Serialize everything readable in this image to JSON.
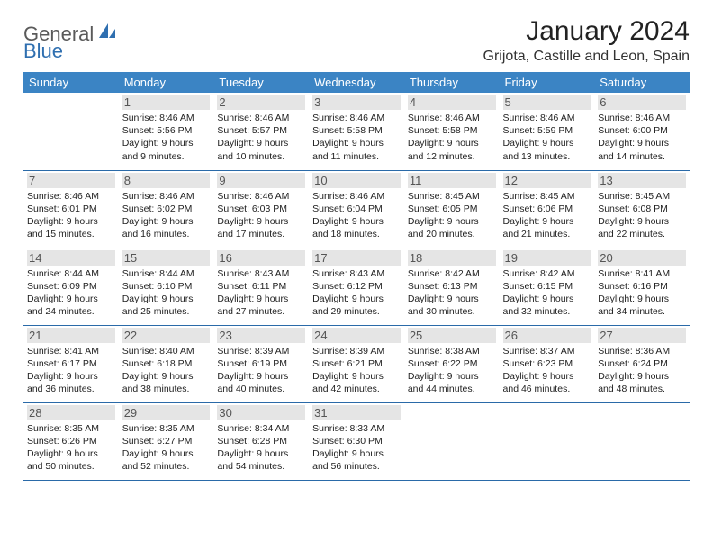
{
  "brand": {
    "part1": "General",
    "part2": "Blue"
  },
  "title": "January 2024",
  "location": "Grijota, Castille and Leon, Spain",
  "colors": {
    "header_bg": "#3b84c4",
    "header_text": "#ffffff",
    "row_border": "#2a6aa8",
    "daynum_bg": "#e5e5e5",
    "daynum_text": "#555555",
    "body_text": "#222222",
    "brand_gray": "#5a5a5a",
    "brand_blue": "#2f6fb0"
  },
  "days_of_week": [
    "Sunday",
    "Monday",
    "Tuesday",
    "Wednesday",
    "Thursday",
    "Friday",
    "Saturday"
  ],
  "weeks": [
    [
      null,
      {
        "n": "1",
        "sr": "8:46 AM",
        "ss": "5:56 PM",
        "dl": "9 hours and 9 minutes."
      },
      {
        "n": "2",
        "sr": "8:46 AM",
        "ss": "5:57 PM",
        "dl": "9 hours and 10 minutes."
      },
      {
        "n": "3",
        "sr": "8:46 AM",
        "ss": "5:58 PM",
        "dl": "9 hours and 11 minutes."
      },
      {
        "n": "4",
        "sr": "8:46 AM",
        "ss": "5:58 PM",
        "dl": "9 hours and 12 minutes."
      },
      {
        "n": "5",
        "sr": "8:46 AM",
        "ss": "5:59 PM",
        "dl": "9 hours and 13 minutes."
      },
      {
        "n": "6",
        "sr": "8:46 AM",
        "ss": "6:00 PM",
        "dl": "9 hours and 14 minutes."
      }
    ],
    [
      {
        "n": "7",
        "sr": "8:46 AM",
        "ss": "6:01 PM",
        "dl": "9 hours and 15 minutes."
      },
      {
        "n": "8",
        "sr": "8:46 AM",
        "ss": "6:02 PM",
        "dl": "9 hours and 16 minutes."
      },
      {
        "n": "9",
        "sr": "8:46 AM",
        "ss": "6:03 PM",
        "dl": "9 hours and 17 minutes."
      },
      {
        "n": "10",
        "sr": "8:46 AM",
        "ss": "6:04 PM",
        "dl": "9 hours and 18 minutes."
      },
      {
        "n": "11",
        "sr": "8:45 AM",
        "ss": "6:05 PM",
        "dl": "9 hours and 20 minutes."
      },
      {
        "n": "12",
        "sr": "8:45 AM",
        "ss": "6:06 PM",
        "dl": "9 hours and 21 minutes."
      },
      {
        "n": "13",
        "sr": "8:45 AM",
        "ss": "6:08 PM",
        "dl": "9 hours and 22 minutes."
      }
    ],
    [
      {
        "n": "14",
        "sr": "8:44 AM",
        "ss": "6:09 PM",
        "dl": "9 hours and 24 minutes."
      },
      {
        "n": "15",
        "sr": "8:44 AM",
        "ss": "6:10 PM",
        "dl": "9 hours and 25 minutes."
      },
      {
        "n": "16",
        "sr": "8:43 AM",
        "ss": "6:11 PM",
        "dl": "9 hours and 27 minutes."
      },
      {
        "n": "17",
        "sr": "8:43 AM",
        "ss": "6:12 PM",
        "dl": "9 hours and 29 minutes."
      },
      {
        "n": "18",
        "sr": "8:42 AM",
        "ss": "6:13 PM",
        "dl": "9 hours and 30 minutes."
      },
      {
        "n": "19",
        "sr": "8:42 AM",
        "ss": "6:15 PM",
        "dl": "9 hours and 32 minutes."
      },
      {
        "n": "20",
        "sr": "8:41 AM",
        "ss": "6:16 PM",
        "dl": "9 hours and 34 minutes."
      }
    ],
    [
      {
        "n": "21",
        "sr": "8:41 AM",
        "ss": "6:17 PM",
        "dl": "9 hours and 36 minutes."
      },
      {
        "n": "22",
        "sr": "8:40 AM",
        "ss": "6:18 PM",
        "dl": "9 hours and 38 minutes."
      },
      {
        "n": "23",
        "sr": "8:39 AM",
        "ss": "6:19 PM",
        "dl": "9 hours and 40 minutes."
      },
      {
        "n": "24",
        "sr": "8:39 AM",
        "ss": "6:21 PM",
        "dl": "9 hours and 42 minutes."
      },
      {
        "n": "25",
        "sr": "8:38 AM",
        "ss": "6:22 PM",
        "dl": "9 hours and 44 minutes."
      },
      {
        "n": "26",
        "sr": "8:37 AM",
        "ss": "6:23 PM",
        "dl": "9 hours and 46 minutes."
      },
      {
        "n": "27",
        "sr": "8:36 AM",
        "ss": "6:24 PM",
        "dl": "9 hours and 48 minutes."
      }
    ],
    [
      {
        "n": "28",
        "sr": "8:35 AM",
        "ss": "6:26 PM",
        "dl": "9 hours and 50 minutes."
      },
      {
        "n": "29",
        "sr": "8:35 AM",
        "ss": "6:27 PM",
        "dl": "9 hours and 52 minutes."
      },
      {
        "n": "30",
        "sr": "8:34 AM",
        "ss": "6:28 PM",
        "dl": "9 hours and 54 minutes."
      },
      {
        "n": "31",
        "sr": "8:33 AM",
        "ss": "6:30 PM",
        "dl": "9 hours and 56 minutes."
      },
      null,
      null,
      null
    ]
  ],
  "labels": {
    "sunrise": "Sunrise:",
    "sunset": "Sunset:",
    "daylight": "Daylight:"
  }
}
